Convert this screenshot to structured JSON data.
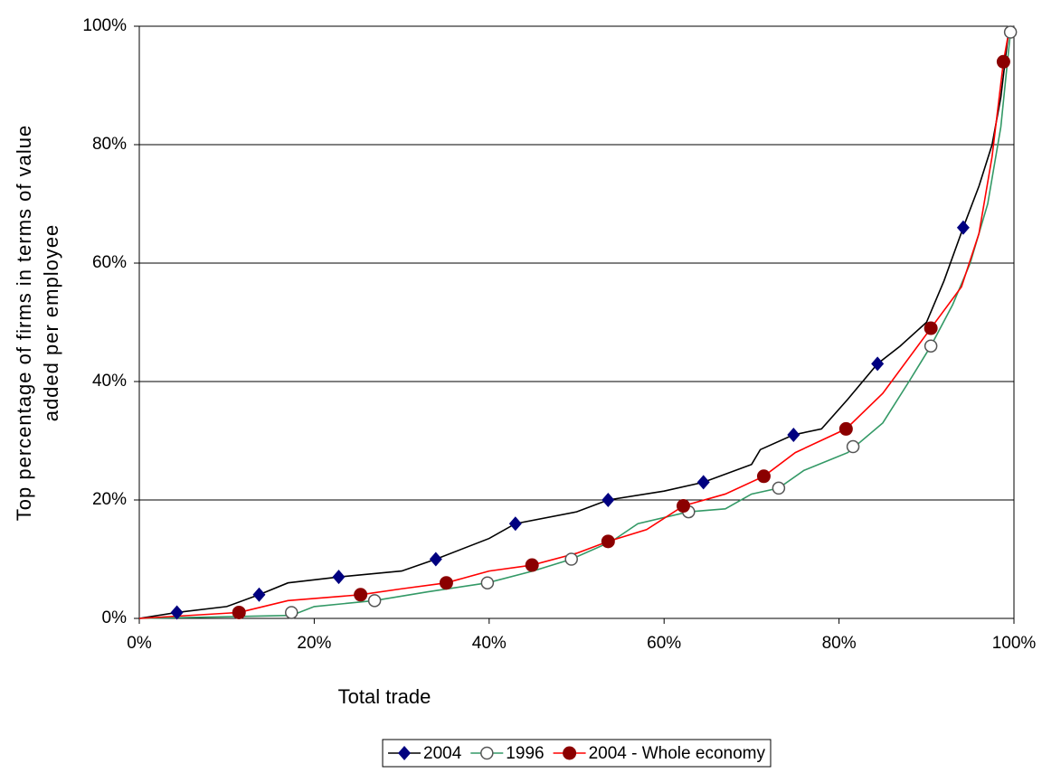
{
  "chart_data": {
    "type": "line",
    "x_label": "Total trade",
    "y_label": [
      "Top percentage of firms in terms of value",
      "added per employee"
    ],
    "xlim": [
      0,
      100
    ],
    "ylim": [
      0,
      100
    ],
    "xticks": [
      {
        "value": 0,
        "label": "0%"
      },
      {
        "value": 20,
        "label": "20%"
      },
      {
        "value": 40,
        "label": "40%"
      },
      {
        "value": 60,
        "label": "60%"
      },
      {
        "value": 80,
        "label": "80%"
      },
      {
        "value": 100,
        "label": "100%"
      }
    ],
    "yticks": [
      {
        "value": 0,
        "label": "0%"
      },
      {
        "value": 20,
        "label": "20%"
      },
      {
        "value": 40,
        "label": "40%"
      },
      {
        "value": 60,
        "label": "60%"
      },
      {
        "value": 80,
        "label": "80%"
      },
      {
        "value": 100,
        "label": "100%"
      }
    ],
    "grid": true,
    "legend": "bottom",
    "series": [
      {
        "name": "2004",
        "color": "#000000",
        "marker": "diamond",
        "marker_color": "#000080",
        "x": [
          0,
          4.3,
          10,
          13.7,
          17,
          22.8,
          30,
          33.9,
          40,
          43,
          50,
          53.6,
          60,
          64.5,
          70,
          71,
          74.8,
          78,
          81,
          84.4,
          87,
          90,
          92,
          94.2,
          96,
          97.5,
          98.5,
          99.3
        ],
        "values": [
          0,
          1,
          2,
          4,
          6,
          7,
          8,
          10,
          13.5,
          16,
          18,
          20,
          21.5,
          23,
          26,
          28.5,
          31,
          32,
          37,
          43,
          46,
          50,
          57,
          66,
          73,
          80,
          88,
          98
        ],
        "marker_x": [
          4.3,
          13.7,
          22.8,
          33.9,
          43,
          53.6,
          64.5,
          74.8,
          84.4,
          94.2
        ],
        "marker_values": [
          1,
          4,
          7,
          10,
          16,
          20,
          23,
          31,
          43,
          66
        ]
      },
      {
        "name": "1996",
        "color": "#339966",
        "marker": "open-circle",
        "marker_color": "#555555",
        "x": [
          0,
          17.4,
          20,
          26.9,
          33,
          39.8,
          45,
          49.4,
          54,
          57,
          62.8,
          67,
          70,
          73.1,
          76,
          81,
          85,
          88,
          90.5,
          93,
          95,
          97,
          98.5,
          99.6
        ],
        "values": [
          0,
          0.5,
          2,
          3,
          4.5,
          6,
          8,
          10,
          13,
          16,
          18,
          18.5,
          21,
          22,
          25,
          28,
          33,
          40,
          46,
          53,
          60,
          70,
          83,
          99
        ],
        "marker_x": [
          17.4,
          26.9,
          39.8,
          49.4,
          62.8,
          73.1,
          81.6,
          90.5,
          99.6
        ],
        "marker_values": [
          1,
          3,
          6,
          10,
          18,
          22,
          29,
          46,
          99
        ]
      },
      {
        "name": "2004 - Whole economy",
        "color": "#ff0000",
        "marker": "circle",
        "marker_color": "#8b0000",
        "x": [
          0,
          11.4,
          17,
          25.3,
          30,
          35.1,
          40,
          44.9,
          50,
          53.6,
          58,
          62.2,
          67,
          71.4,
          75,
          80.8,
          85,
          90.5,
          94,
          96,
          97.5,
          98.8,
          99.4
        ],
        "values": [
          0,
          1,
          3,
          4,
          5,
          6,
          8,
          9,
          11,
          13,
          15,
          19,
          21,
          24,
          28,
          32,
          38,
          49,
          56,
          65,
          78,
          94,
          99
        ],
        "marker_x": [
          11.4,
          25.3,
          35.1,
          44.9,
          53.6,
          62.2,
          71.4,
          80.8,
          90.5,
          98.8
        ],
        "marker_values": [
          1,
          4,
          6,
          9,
          13,
          19,
          24,
          32,
          49,
          94
        ]
      }
    ]
  }
}
